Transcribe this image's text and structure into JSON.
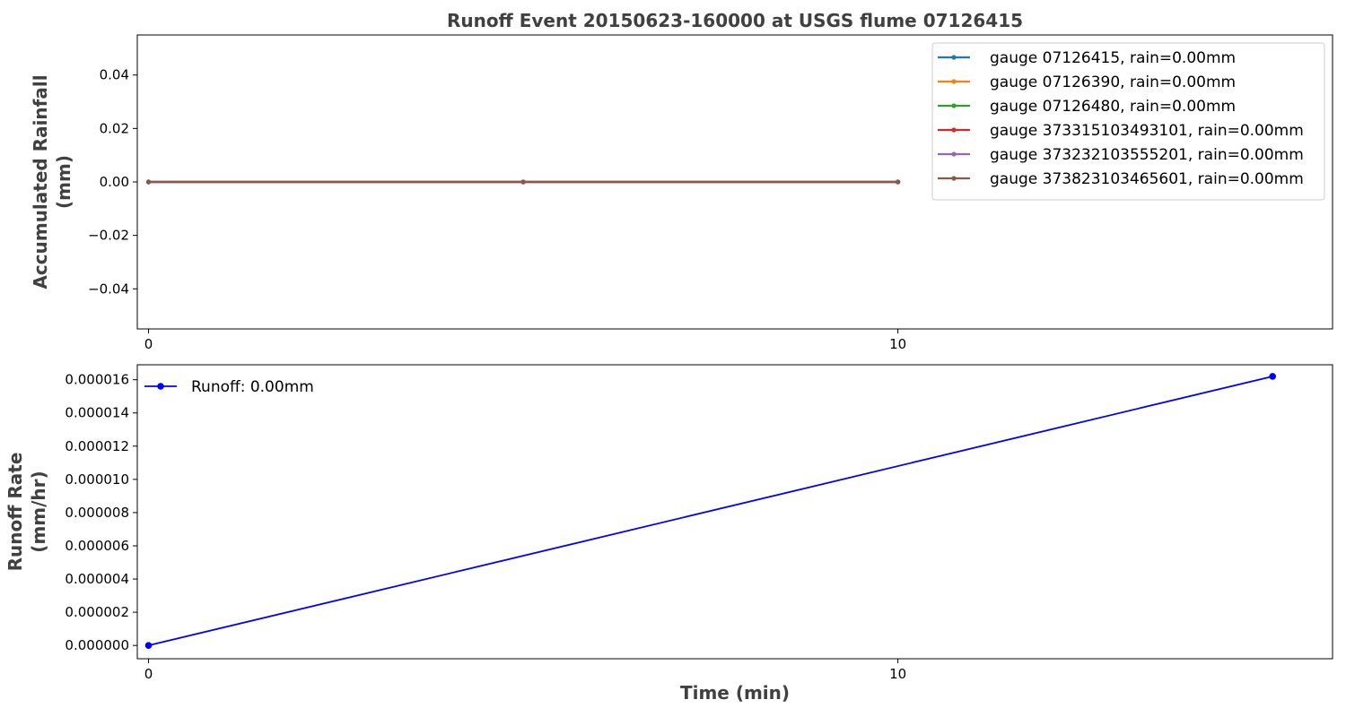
{
  "chart_data": [
    {
      "type": "line",
      "title": "Runoff Event 20150623-160000 at USGS flume 07126415",
      "xlabel": "",
      "ylabel_lines": [
        "Accumulated Rainfall",
        "(mm)"
      ],
      "x": [
        0,
        5,
        10
      ],
      "xlim": [
        -0.15,
        15.8
      ],
      "ylim": [
        -0.055,
        0.055
      ],
      "xticks": [
        0,
        10
      ],
      "xtick_labels": [
        "0",
        "10"
      ],
      "yticks": [
        -0.04,
        -0.02,
        0.0,
        0.02,
        0.04
      ],
      "ytick_labels": [
        "−0.04",
        "−0.02",
        "0.00",
        "0.02",
        "0.04"
      ],
      "legend_position": "top-right",
      "grid": false,
      "series": [
        {
          "name": "gauge 07126415, rain=0.00mm",
          "color": "#1f77b4",
          "values": [
            0,
            0,
            0
          ]
        },
        {
          "name": "gauge 07126390, rain=0.00mm",
          "color": "#ff7f0e",
          "values": [
            0,
            0,
            0
          ]
        },
        {
          "name": "gauge 07126480, rain=0.00mm",
          "color": "#2ca02c",
          "values": [
            0,
            0,
            0
          ]
        },
        {
          "name": "gauge 373315103493101, rain=0.00mm",
          "color": "#d62728",
          "values": [
            0,
            0,
            0
          ]
        },
        {
          "name": "gauge 373232103555201, rain=0.00mm",
          "color": "#9467bd",
          "values": [
            0,
            0,
            0
          ]
        },
        {
          "name": "gauge 373823103465601, rain=0.00mm",
          "color": "#8c564b",
          "values": [
            0,
            0,
            0
          ]
        }
      ]
    },
    {
      "type": "line",
      "title": "",
      "xlabel": "Time (min)",
      "ylabel_lines": [
        "Runoff Rate",
        "(mm/hr)"
      ],
      "x": [
        0,
        15
      ],
      "xlim": [
        -0.15,
        15.8
      ],
      "ylim": [
        -8e-07,
        1.69e-05
      ],
      "xticks": [
        0,
        10
      ],
      "xtick_labels": [
        "0",
        "10"
      ],
      "yticks": [
        0,
        2e-06,
        4e-06,
        6e-06,
        8e-06,
        1e-05,
        1.2e-05,
        1.4e-05,
        1.6e-05
      ],
      "ytick_labels": [
        "0.000000",
        "0.000002",
        "0.000004",
        "0.000006",
        "0.000008",
        "0.000010",
        "0.000012",
        "0.000014",
        "0.000016"
      ],
      "legend_position": "top-left",
      "grid": false,
      "series": [
        {
          "name": "Runoff: 0.00mm",
          "color": "#0000ff",
          "values": [
            0,
            1.62e-05
          ]
        }
      ]
    }
  ]
}
